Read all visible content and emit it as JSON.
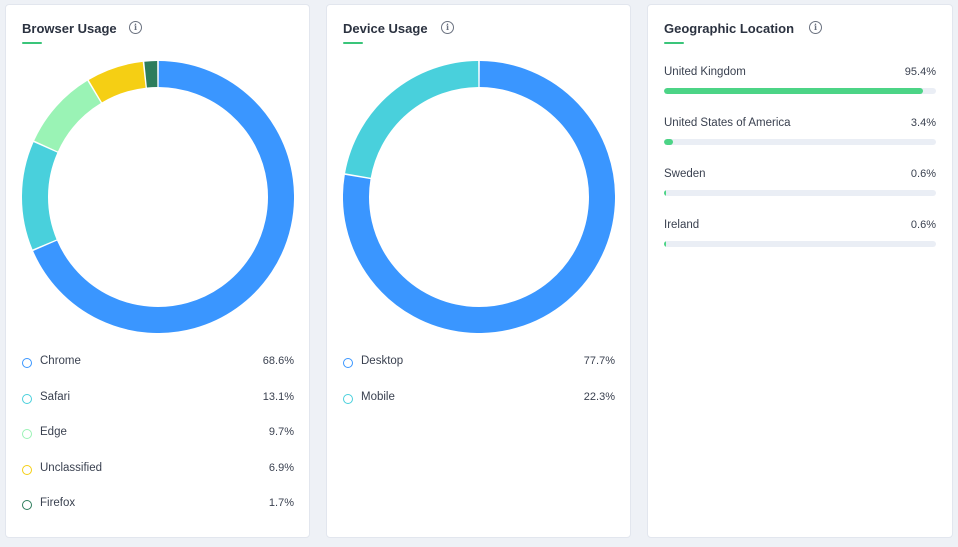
{
  "browser": {
    "title": "Browser Usage",
    "info_icon": "info-icon",
    "items": [
      {
        "label": "Chrome",
        "value": "68.6%",
        "percent": 68.6,
        "color": "#3a96ff"
      },
      {
        "label": "Safari",
        "value": "13.1%",
        "percent": 13.1,
        "color": "#49d0dc"
      },
      {
        "label": "Edge",
        "value": "9.7%",
        "percent": 9.7,
        "color": "#9af3b5"
      },
      {
        "label": "Unclassified",
        "value": "6.9%",
        "percent": 6.9,
        "color": "#f5cf14"
      },
      {
        "label": "Firefox",
        "value": "1.7%",
        "percent": 1.7,
        "color": "#2d7d5c"
      }
    ]
  },
  "device": {
    "title": "Device Usage",
    "info_icon": "info-icon",
    "items": [
      {
        "label": "Desktop",
        "value": "77.7%",
        "percent": 77.7,
        "color": "#3a96ff"
      },
      {
        "label": "Mobile",
        "value": "22.3%",
        "percent": 22.3,
        "color": "#49d0dc"
      }
    ]
  },
  "geo": {
    "title": "Geographic Location",
    "info_icon": "info-icon",
    "bar_color": "#4cd486",
    "items": [
      {
        "label": "United Kingdom",
        "value": "95.4%",
        "percent": 95.4
      },
      {
        "label": "United States of America",
        "value": "3.4%",
        "percent": 3.4
      },
      {
        "label": "Sweden",
        "value": "0.6%",
        "percent": 0.6
      },
      {
        "label": "Ireland",
        "value": "0.6%",
        "percent": 0.6
      }
    ]
  }
}
